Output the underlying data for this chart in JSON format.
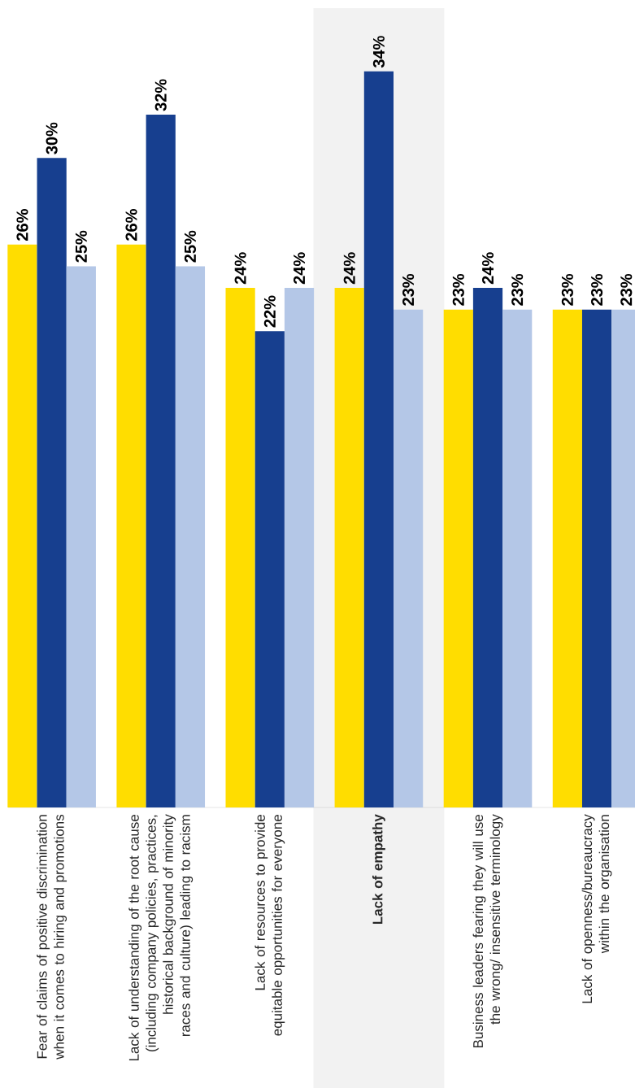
{
  "chart_data": {
    "type": "bar",
    "categories": [
      "Fear of claims of positive discrimination when it comes to hiring and promotions",
      "Lack of understanding of the root cause (including company policies, practices, historical background of minority races and culture) leading to racism",
      "Lack of resources to provide equitable opportunities for everyone",
      "Lack of empathy",
      "Business leaders fearing they will use the wrong/ insensitive terminology",
      "Lack of openness/bureaucracy within the organisation"
    ],
    "series": [
      {
        "color": "#ffdd00",
        "values": [
          26,
          26,
          24,
          24,
          23,
          23
        ],
        "value_labels": [
          "26%",
          "26%",
          "24%",
          "24%",
          "23%",
          "23%"
        ]
      },
      {
        "color": "#173f8f",
        "values": [
          30,
          32,
          22,
          34,
          24,
          23
        ],
        "value_labels": [
          "30%",
          "32%",
          "22%",
          "34%",
          "24%",
          "23%"
        ]
      },
      {
        "color": "#b4c7e7",
        "values": [
          25,
          25,
          24,
          23,
          23,
          23
        ],
        "value_labels": [
          "25%",
          "25%",
          "24%",
          "23%",
          "23%",
          "23%"
        ]
      }
    ]
  }
}
